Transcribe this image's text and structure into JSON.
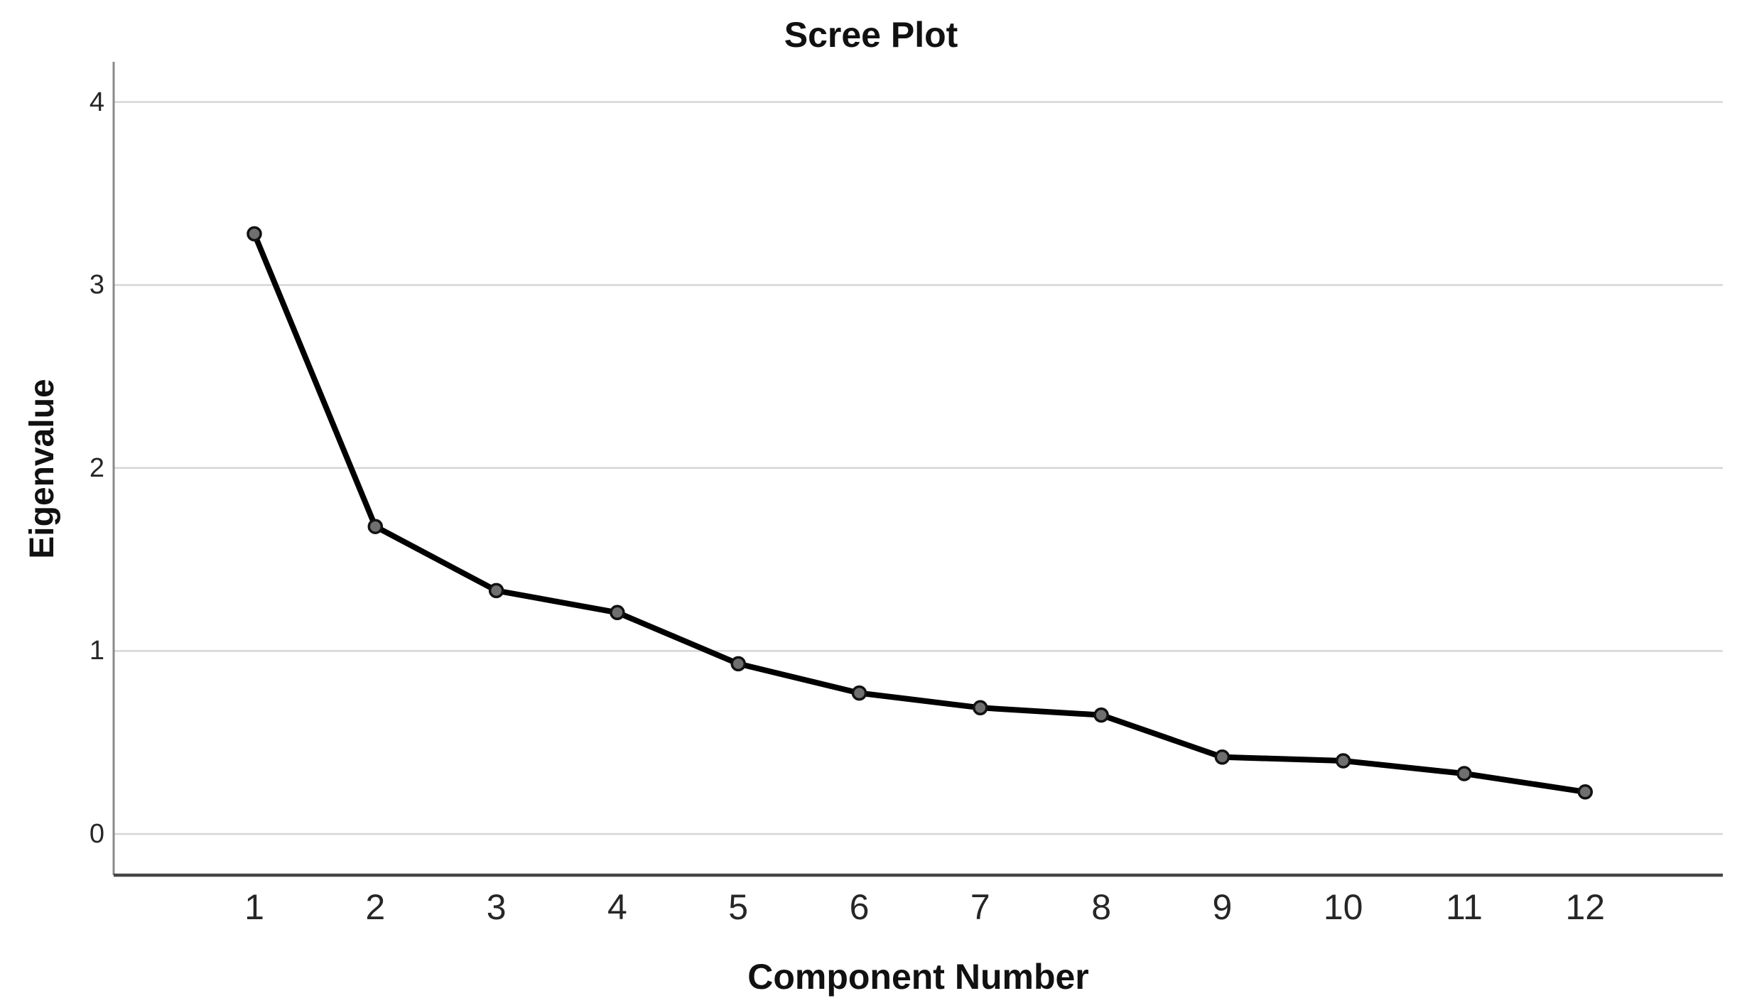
{
  "chart_data": {
    "type": "line",
    "title": "Scree Plot",
    "xlabel": "Component Number",
    "ylabel": "Eigenvalue",
    "categories": [
      "1",
      "2",
      "3",
      "4",
      "5",
      "6",
      "7",
      "8",
      "9",
      "10",
      "11",
      "12"
    ],
    "series": [
      {
        "name": "Eigenvalue",
        "values": [
          3.28,
          1.68,
          1.33,
          1.21,
          0.93,
          0.77,
          0.69,
          0.65,
          0.42,
          0.4,
          0.33,
          0.23
        ]
      }
    ],
    "y_ticks": [
      0,
      1,
      2,
      3,
      4
    ],
    "ylim": [
      -0.23,
      4.22
    ],
    "xlim_categories": [
      1,
      12
    ],
    "grid": "horizontal",
    "legend": "none",
    "colors": {
      "line": "#000000",
      "marker_fill": "#6f6f6f",
      "marker_stroke": "#111111",
      "gridline": "#d6d6d6",
      "left_spine": "#8a8a8a",
      "bottom_axis": "#454545",
      "title_text": "#111111",
      "tick_text": "#262626",
      "background": "#ffffff"
    }
  }
}
